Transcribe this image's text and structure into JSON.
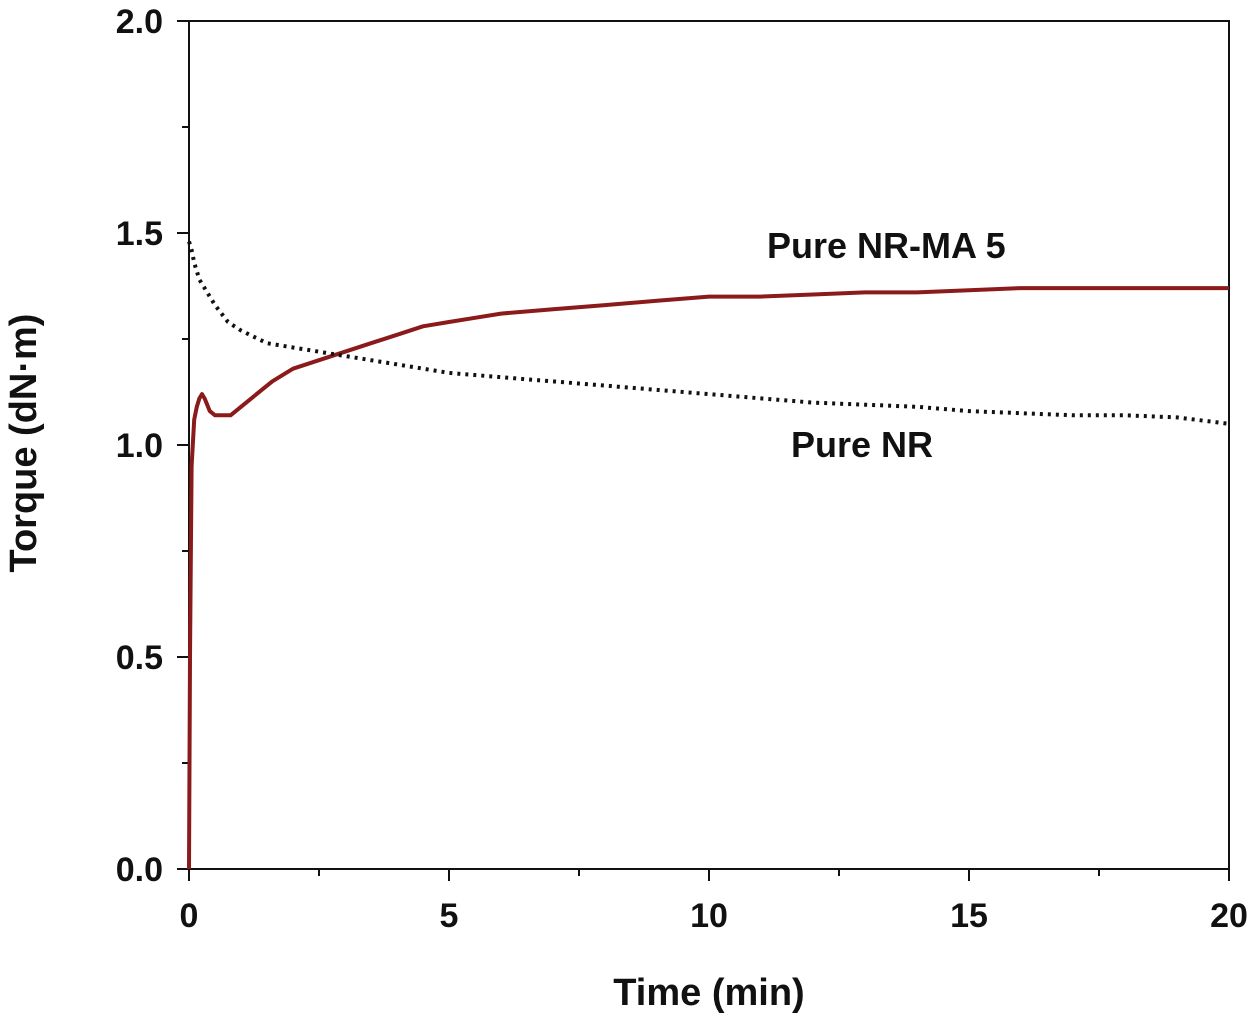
{
  "chart_data": {
    "type": "line",
    "title": "",
    "xlabel": "Time (min)",
    "ylabel": "Torque (dN·m)",
    "xlim": [
      0,
      20
    ],
    "ylim": [
      0,
      2.0
    ],
    "xticks": [
      "0",
      "5",
      "10",
      "15",
      "20"
    ],
    "yticks": [
      "0.0",
      "0.5",
      "1.0",
      "1.5",
      "2.0"
    ],
    "grid": false,
    "legend": "none",
    "series": [
      {
        "name": "Pure NR-MA 5",
        "color": "#8b1a1a",
        "style": "solid",
        "x": [
          0,
          0.02,
          0.05,
          0.1,
          0.15,
          0.2,
          0.25,
          0.3,
          0.4,
          0.5,
          0.6,
          0.8,
          1.0,
          1.3,
          1.6,
          2.0,
          2.5,
          3.0,
          3.5,
          4.0,
          4.5,
          5.0,
          5.5,
          6.0,
          7.0,
          8.0,
          9.0,
          10.0,
          11.0,
          12.0,
          13.0,
          14.0,
          15.0,
          16.0,
          17.0,
          18.0,
          19.0,
          20.0
        ],
        "y": [
          0.0,
          0.5,
          0.95,
          1.06,
          1.09,
          1.11,
          1.12,
          1.11,
          1.08,
          1.07,
          1.07,
          1.07,
          1.09,
          1.12,
          1.15,
          1.18,
          1.2,
          1.22,
          1.24,
          1.26,
          1.28,
          1.29,
          1.3,
          1.31,
          1.32,
          1.33,
          1.34,
          1.35,
          1.35,
          1.355,
          1.36,
          1.36,
          1.365,
          1.37,
          1.37,
          1.37,
          1.37,
          1.37
        ]
      },
      {
        "name": "Pure NR",
        "color": "#111111",
        "style": "dotted",
        "x": [
          0,
          0.05,
          0.1,
          0.2,
          0.3,
          0.5,
          0.75,
          1.0,
          1.5,
          2.0,
          2.5,
          3.0,
          4.0,
          5.0,
          6.0,
          7.0,
          8.0,
          9.0,
          10.0,
          11.0,
          12.0,
          13.0,
          14.0,
          15.0,
          16.0,
          17.0,
          18.0,
          19.0,
          20.0
        ],
        "y": [
          1.48,
          1.46,
          1.43,
          1.39,
          1.37,
          1.33,
          1.29,
          1.27,
          1.24,
          1.23,
          1.22,
          1.21,
          1.19,
          1.17,
          1.16,
          1.15,
          1.14,
          1.13,
          1.12,
          1.11,
          1.1,
          1.095,
          1.09,
          1.08,
          1.075,
          1.07,
          1.07,
          1.065,
          1.05
        ]
      }
    ],
    "annotations": [
      {
        "text": "Pure NR-MA 5",
        "series": 0
      },
      {
        "text": "Pure NR",
        "series": 1
      }
    ]
  }
}
